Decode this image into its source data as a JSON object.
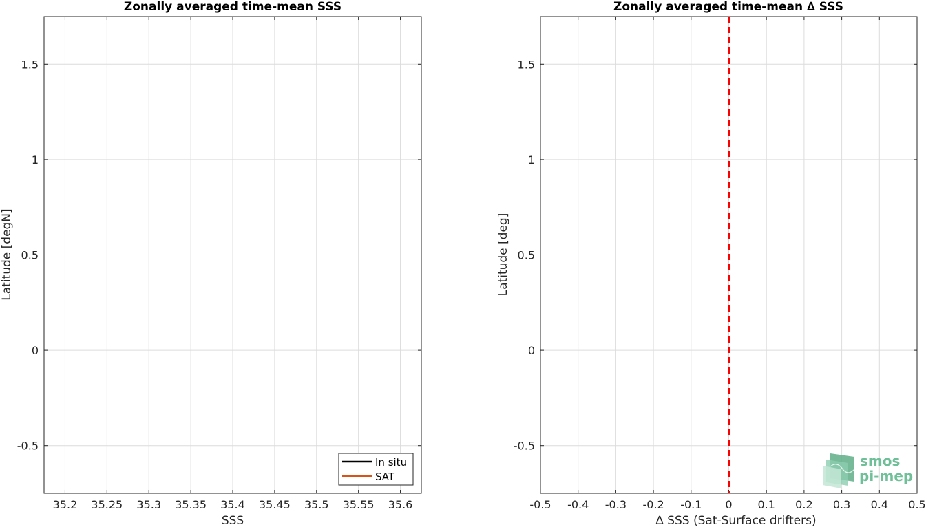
{
  "chart_data": [
    {
      "type": "line",
      "title": "Zonally averaged time-mean SSS",
      "xlabel": "SSS",
      "ylabel": "Latitude [degN]",
      "xlim": [
        35.175,
        35.625
      ],
      "ylim": [
        -0.75,
        1.75
      ],
      "xticks": [
        "35.2",
        "35.25",
        "35.3",
        "35.35",
        "35.4",
        "35.45",
        "35.5",
        "35.55",
        "35.6"
      ],
      "xtick_values": [
        35.2,
        35.25,
        35.3,
        35.35,
        35.4,
        35.45,
        35.5,
        35.55,
        35.6
      ],
      "yticks": [
        "-0.5",
        "0",
        "0.5",
        "1",
        "1.5"
      ],
      "ytick_values": [
        -0.5,
        0,
        0.5,
        1,
        1.5
      ],
      "grid": true,
      "legend_position": "bottom-right",
      "series": [
        {
          "name": "In situ",
          "color": "#000000",
          "x": [],
          "y": []
        },
        {
          "name": "SAT",
          "color": "#d95319",
          "x": [],
          "y": []
        }
      ]
    },
    {
      "type": "line",
      "title": "Zonally averaged time-mean ∆ SSS",
      "xlabel": "∆ SSS (Sat-Surface drifters)",
      "ylabel": "Latitude [deg]",
      "xlim": [
        -0.5,
        0.5
      ],
      "ylim": [
        -0.75,
        1.75
      ],
      "xticks": [
        "-0.5",
        "-0.4",
        "-0.3",
        "-0.2",
        "-0.1",
        "0",
        "0.1",
        "0.2",
        "0.3",
        "0.4",
        "0.5"
      ],
      "xtick_values": [
        -0.5,
        -0.4,
        -0.3,
        -0.2,
        -0.1,
        0,
        0.1,
        0.2,
        0.3,
        0.4,
        0.5
      ],
      "yticks": [
        "-0.5",
        "0",
        "0.5",
        "1",
        "1.5"
      ],
      "ytick_values": [
        -0.5,
        0,
        0.5,
        1,
        1.5
      ],
      "grid": true,
      "reference_line": {
        "x": 0,
        "color": "#ff0000",
        "style": "dashed"
      },
      "series": []
    }
  ],
  "logo": {
    "line1": "smos",
    "line2": "pi-mep",
    "color": "#6fbf98"
  }
}
